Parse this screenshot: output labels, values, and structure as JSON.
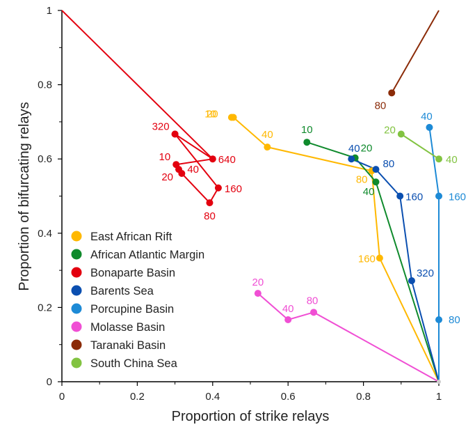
{
  "chart_data": {
    "type": "line",
    "title": "",
    "xlabel": "Proportion of strike relays",
    "ylabel": "Proportion of  bifurcating relays",
    "xlim": [
      0,
      1
    ],
    "ylim": [
      0,
      1
    ],
    "xticks": [
      "0",
      "0.2",
      "0.4",
      "0.6",
      "0.8",
      "1"
    ],
    "yticks": [
      "0",
      "0.2",
      "0.4",
      "0.6",
      "0.8",
      "1"
    ],
    "grid": false,
    "legend_position": "bottom-left",
    "frame_lines": [
      {
        "color": "#e3000f",
        "from": [
          0,
          1
        ],
        "to": [
          0.4,
          0.6
        ]
      },
      {
        "color": "#8b2b08",
        "from": [
          1,
          1
        ],
        "to": [
          0.875,
          0.778
        ]
      }
    ],
    "series": [
      {
        "name": "East African Rift",
        "color": "#ffb800",
        "points": [
          {
            "x": 0.455,
            "y": 0.712,
            "label": "20"
          },
          {
            "x": 0.545,
            "y": 0.632,
            "label": "40"
          },
          {
            "x": 0.822,
            "y": 0.568,
            "label": "80"
          },
          {
            "x": 0.843,
            "y": 0.333,
            "label": "160"
          },
          {
            "x": 1.0,
            "y": 0.0,
            "label": ""
          }
        ],
        "extra_points": [
          {
            "x": 0.45,
            "y": 0.712,
            "label": "10"
          }
        ]
      },
      {
        "name": "African Atlantic Margin",
        "color": "#0f8a2c",
        "points": [
          {
            "x": 0.65,
            "y": 0.645,
            "label": "10"
          },
          {
            "x": 0.778,
            "y": 0.603,
            "label": "20"
          },
          {
            "x": 0.833,
            "y": 0.538,
            "label": "40"
          },
          {
            "x": 1.0,
            "y": 0.0,
            "label": ""
          }
        ]
      },
      {
        "name": "Bonaparte Basin",
        "color": "#e3000f",
        "points": [
          {
            "x": 0.3,
            "y": 0.667,
            "label": "320"
          },
          {
            "x": 0.4,
            "y": 0.6,
            "label": "640"
          },
          {
            "x": 0.303,
            "y": 0.585,
            "label": "10"
          },
          {
            "x": 0.31,
            "y": 0.572,
            "label": "20"
          },
          {
            "x": 0.318,
            "y": 0.561,
            "label": "40"
          },
          {
            "x": 0.392,
            "y": 0.482,
            "label": "80"
          },
          {
            "x": 0.415,
            "y": 0.522,
            "label": "160"
          },
          {
            "x": 0.3,
            "y": 0.667,
            "label": ""
          }
        ]
      },
      {
        "name": "Barents Sea",
        "color": "#0b4fb0",
        "points": [
          {
            "x": 0.768,
            "y": 0.6,
            "label": "40"
          },
          {
            "x": 0.833,
            "y": 0.572,
            "label": "80"
          },
          {
            "x": 0.897,
            "y": 0.5,
            "label": "160"
          },
          {
            "x": 0.928,
            "y": 0.272,
            "label": "320"
          },
          {
            "x": 1.0,
            "y": 0.0,
            "label": ""
          }
        ]
      },
      {
        "name": "Porcupine Basin",
        "color": "#1d8ad6",
        "points": [
          {
            "x": 0.975,
            "y": 0.685,
            "label": "40"
          },
          {
            "x": 1.0,
            "y": 0.5,
            "label": "160"
          },
          {
            "x": 1.0,
            "y": 0.167,
            "label": "80"
          },
          {
            "x": 1.0,
            "y": 0.0,
            "label": ""
          }
        ]
      },
      {
        "name": "Molasse Basin",
        "color": "#f04fd4",
        "points": [
          {
            "x": 0.52,
            "y": 0.238,
            "label": "20"
          },
          {
            "x": 0.6,
            "y": 0.167,
            "label": "40"
          },
          {
            "x": 0.668,
            "y": 0.187,
            "label": "80"
          },
          {
            "x": 1.0,
            "y": 0.0,
            "label": ""
          }
        ]
      },
      {
        "name": "Taranaki Basin",
        "color": "#8b2b08",
        "points": [
          {
            "x": 0.875,
            "y": 0.778,
            "label": "80"
          }
        ]
      },
      {
        "name": "South China Sea",
        "color": "#82c341",
        "points": [
          {
            "x": 0.9,
            "y": 0.667,
            "label": "20"
          },
          {
            "x": 1.0,
            "y": 0.6,
            "label": "40"
          }
        ]
      }
    ]
  }
}
